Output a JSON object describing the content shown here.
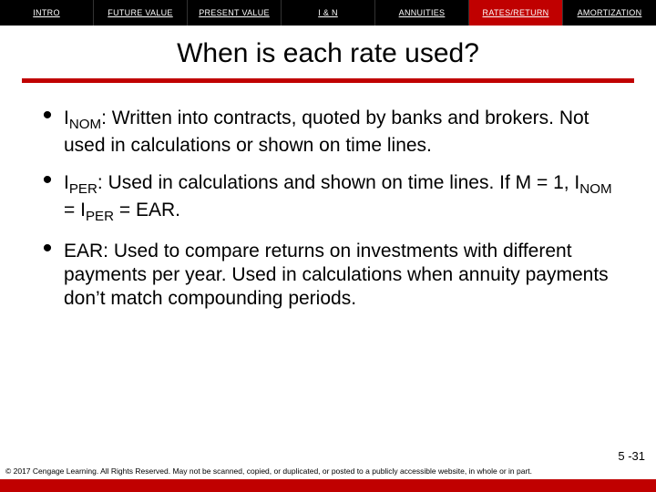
{
  "colors": {
    "red": "#c00000",
    "black": "#000000",
    "white": "#ffffff"
  },
  "nav": {
    "tabs": [
      {
        "label": "INTRO",
        "active": false
      },
      {
        "label": "FUTURE VALUE",
        "active": false
      },
      {
        "label": "PRESENT VALUE",
        "active": false
      },
      {
        "label": "I & N",
        "active": false
      },
      {
        "label": "ANNUITIES",
        "active": false
      },
      {
        "label": "RATES/RETURN",
        "active": true
      },
      {
        "label": "AMORTIZATION",
        "active": false
      }
    ]
  },
  "title": "When is each rate used?",
  "bullets": [
    {
      "var": "I",
      "varsub": "NOM",
      "rest": ":  Written into contracts, quoted by banks and brokers.  Not used in calculations or shown on time lines."
    },
    {
      "var": "I",
      "varsub": "PER",
      "rest": ":  Used in calculations and shown on time lines.  If M = 1, I",
      "var2sub": "NOM",
      "rest2": " = I",
      "var3sub": "PER",
      "rest3": " = EAR."
    },
    {
      "plain": "EAR:  Used to compare returns on investments with different payments per year.  Used in calculations when annuity payments don’t match compounding periods."
    }
  ],
  "slidenum": "5 -31",
  "copyright": "© 2017 Cengage Learning. All Rights Reserved. May not be scanned, copied, or duplicated, or posted to a publicly accessible website, in whole or in part."
}
